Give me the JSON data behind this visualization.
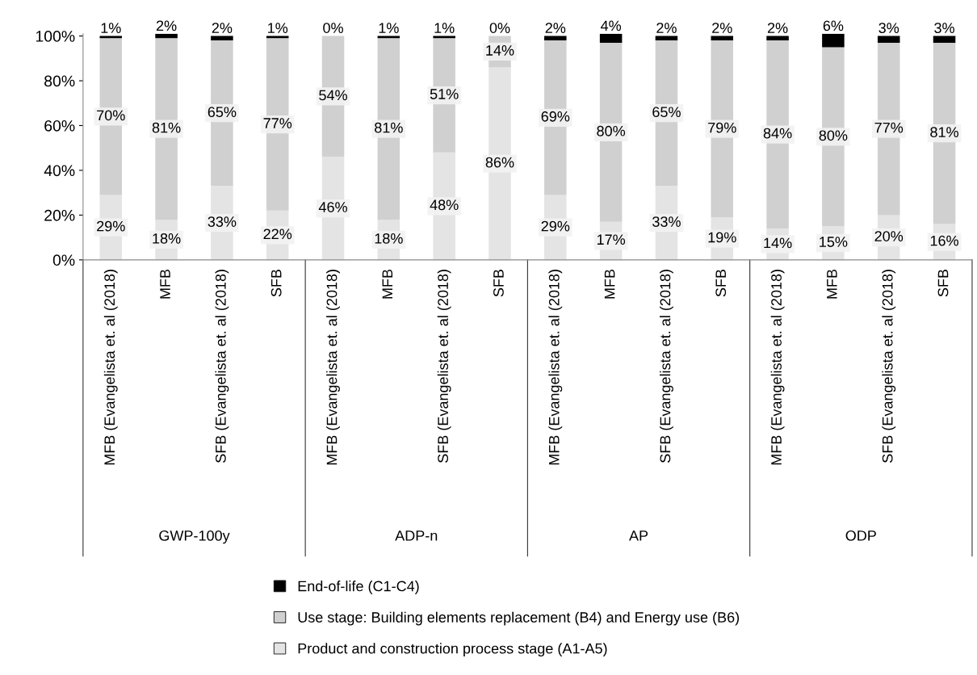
{
  "chart_data": {
    "type": "bar",
    "stacked": true,
    "categories": [
      "MFB (Evangelista et. al (2018)",
      "MFB",
      "SFB (Evangelista et. al (2018)",
      "SFB",
      "MFB (Evangelista et. al (2018)",
      "MFB",
      "SFB (Evangelista et. al (2018)",
      "SFB",
      "MFB (Evangelista et. al (2018)",
      "MFB",
      "SFB (Evangelista et. al (2018)",
      "SFB",
      "MFB (Evangelista et. al (2018)",
      "MFB",
      "SFB (Evangelista et. al (2018)",
      "SFB"
    ],
    "series": [
      {
        "name": "Product and construction process stage (A1-A5)",
        "color": "#e4e4e4",
        "values": [
          29,
          18,
          33,
          22,
          46,
          18,
          48,
          86,
          29,
          17,
          33,
          19,
          14,
          15,
          20,
          16
        ],
        "value_labels": [
          "29%",
          "18%",
          "33%",
          "22%",
          "46%",
          "18%",
          "48%",
          "86%",
          "29%",
          "17%",
          "33%",
          "19%",
          "14%",
          "15%",
          "20%",
          "16%"
        ]
      },
      {
        "name": "Use stage: Building elements replacement (B4) and Energy use (B6)",
        "color": "#d0d0d0",
        "values": [
          70,
          81,
          65,
          77,
          54,
          81,
          51,
          14,
          69,
          80,
          65,
          79,
          84,
          80,
          77,
          81
        ],
        "value_labels": [
          "70%",
          "81%",
          "65%",
          "77%",
          "54%",
          "81%",
          "51%",
          "14%",
          "69%",
          "80%",
          "65%",
          "79%",
          "84%",
          "80%",
          "77%",
          "81%"
        ]
      },
      {
        "name": "End-of-life (C1-C4)",
        "color": "#000000",
        "values": [
          1,
          2,
          2,
          1,
          0,
          1,
          1,
          0,
          2,
          4,
          2,
          2,
          2,
          6,
          3,
          3
        ],
        "value_labels": [
          "1%",
          "2%",
          "2%",
          "1%",
          "0%",
          "1%",
          "1%",
          "0%",
          "2%",
          "4%",
          "2%",
          "2%",
          "2%",
          "6%",
          "3%",
          "3%"
        ]
      }
    ],
    "annotations": [
      "GWP-100y",
      "ADP-n",
      "AP",
      "ODP"
    ],
    "ylim": [
      0,
      101
    ],
    "yticks": [
      {
        "value": 0,
        "label": "0%"
      },
      {
        "value": 20,
        "label": "20%"
      },
      {
        "value": 40,
        "label": "40%"
      },
      {
        "value": 60,
        "label": "60%"
      },
      {
        "value": 80,
        "label": "80%"
      },
      {
        "value": 100,
        "label": "100%"
      }
    ],
    "grid": false,
    "legend": "bottom"
  }
}
